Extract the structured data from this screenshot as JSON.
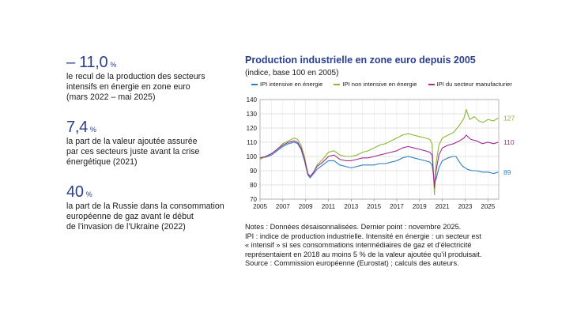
{
  "stats": [
    {
      "value": "– 11,0",
      "unit": "%",
      "text": "le recul de la production des secteurs\nintensifs en énergie en zone euro\n(mars 2022 – mai 2025)"
    },
    {
      "value": "7,4",
      "unit": "%",
      "text": "la part de la valeur ajoutée assurée\npar ces secteurs juste avant la crise\nénergétique (2021)"
    },
    {
      "value": "40",
      "unit": "%",
      "text": "la part de la Russie dans la consommation\neuropéenne de gaz avant le début\nde l’invasion de l’Ukraine (2022)"
    }
  ],
  "notes": [
    "Notes : Données désaisonnalisées. Dernier point : novembre 2025.",
    "IPI : indice de production industrielle. Intensité en énergie : un secteur est",
    "« intensif » si ses consommations intermédiaires de gaz et d’électricité",
    "représentaient en 2018 au moins 5 % de la valeur ajoutée qu’il produisait.",
    "Source : Commission européenne (Eurostat) ; calculs des auteurs."
  ],
  "chart_data": {
    "type": "line",
    "title": "Production industrielle en zone euro depuis 2005",
    "subtitle": "(indice, base 100 en 2005)",
    "xlabel": "",
    "ylabel": "",
    "xlim": [
      2005,
      2025.95
    ],
    "ylim": [
      70,
      140
    ],
    "yticks": [
      70,
      80,
      90,
      100,
      110,
      120,
      130,
      140
    ],
    "xticks": [
      "2005",
      "2007",
      "2009",
      "2011",
      "2013",
      "2015",
      "2017",
      "2019",
      "2021",
      "2023",
      "2025"
    ],
    "grid": true,
    "legend_position": "top",
    "series": [
      {
        "name": "IPI intensive en énergie",
        "color": "#2a7fc1",
        "end_label": "89",
        "points": [
          [
            2005,
            99
          ],
          [
            2005.5,
            99.5
          ],
          [
            2006,
            101
          ],
          [
            2006.5,
            104
          ],
          [
            2007,
            107
          ],
          [
            2007.5,
            109
          ],
          [
            2008,
            110
          ],
          [
            2008.3,
            109
          ],
          [
            2008.6,
            105
          ],
          [
            2008.9,
            97
          ],
          [
            2009.2,
            87
          ],
          [
            2009.4,
            85
          ],
          [
            2009.7,
            88
          ],
          [
            2010,
            91
          ],
          [
            2010.5,
            94
          ],
          [
            2011,
            97
          ],
          [
            2011.5,
            97
          ],
          [
            2012,
            94
          ],
          [
            2012.5,
            93
          ],
          [
            2013,
            92
          ],
          [
            2013.5,
            93
          ],
          [
            2014,
            94
          ],
          [
            2014.5,
            94
          ],
          [
            2015,
            94
          ],
          [
            2015.5,
            95
          ],
          [
            2016,
            95
          ],
          [
            2016.5,
            96
          ],
          [
            2017,
            97
          ],
          [
            2017.5,
            99
          ],
          [
            2018,
            100
          ],
          [
            2018.5,
            99
          ],
          [
            2019,
            98
          ],
          [
            2019.5,
            97
          ],
          [
            2019.9,
            96
          ],
          [
            2020.1,
            94
          ],
          [
            2020.3,
            82
          ],
          [
            2020.45,
            84
          ],
          [
            2020.7,
            92
          ],
          [
            2021,
            97
          ],
          [
            2021.5,
            99
          ],
          [
            2021.9,
            100
          ],
          [
            2022.2,
            100
          ],
          [
            2022.5,
            96
          ],
          [
            2022.8,
            93
          ],
          [
            2023.2,
            91
          ],
          [
            2023.6,
            90
          ],
          [
            2024,
            90
          ],
          [
            2024.5,
            89
          ],
          [
            2025,
            89
          ],
          [
            2025.5,
            88
          ],
          [
            2025.9,
            89
          ]
        ]
      },
      {
        "name": "IPI non intensive en énergie",
        "color": "#8ab832",
        "end_label": "127",
        "points": [
          [
            2005,
            98
          ],
          [
            2005.5,
            100
          ],
          [
            2006,
            102
          ],
          [
            2006.5,
            105
          ],
          [
            2007,
            109
          ],
          [
            2007.5,
            111
          ],
          [
            2008,
            113
          ],
          [
            2008.3,
            112
          ],
          [
            2008.6,
            108
          ],
          [
            2008.9,
            100
          ],
          [
            2009.2,
            88
          ],
          [
            2009.4,
            86
          ],
          [
            2009.7,
            89
          ],
          [
            2010,
            94
          ],
          [
            2010.5,
            98
          ],
          [
            2011,
            103
          ],
          [
            2011.5,
            104
          ],
          [
            2012,
            101
          ],
          [
            2012.5,
            100
          ],
          [
            2013,
            100
          ],
          [
            2013.5,
            101
          ],
          [
            2014,
            103
          ],
          [
            2014.5,
            104
          ],
          [
            2015,
            106
          ],
          [
            2015.5,
            108
          ],
          [
            2016,
            109
          ],
          [
            2016.5,
            111
          ],
          [
            2017,
            113
          ],
          [
            2017.5,
            115
          ],
          [
            2018,
            116
          ],
          [
            2018.5,
            115
          ],
          [
            2019,
            114
          ],
          [
            2019.5,
            113
          ],
          [
            2019.9,
            112
          ],
          [
            2020.1,
            109
          ],
          [
            2020.3,
            73
          ],
          [
            2020.45,
            95
          ],
          [
            2020.7,
            108
          ],
          [
            2021,
            113
          ],
          [
            2021.5,
            115
          ],
          [
            2022,
            117
          ],
          [
            2022.5,
            122
          ],
          [
            2022.9,
            127
          ],
          [
            2023.1,
            133
          ],
          [
            2023.4,
            126
          ],
          [
            2023.8,
            128
          ],
          [
            2024.2,
            125
          ],
          [
            2024.6,
            124
          ],
          [
            2025,
            126
          ],
          [
            2025.5,
            125
          ],
          [
            2025.9,
            127
          ]
        ]
      },
      {
        "name": "IPI du secteur manufacturier",
        "color": "#a12b8f",
        "end_label": "110",
        "points": [
          [
            2005,
            99
          ],
          [
            2005.5,
            100
          ],
          [
            2006,
            102
          ],
          [
            2006.5,
            105
          ],
          [
            2007,
            108
          ],
          [
            2007.5,
            110
          ],
          [
            2008,
            111
          ],
          [
            2008.3,
            110
          ],
          [
            2008.6,
            106
          ],
          [
            2008.9,
            98
          ],
          [
            2009.2,
            88
          ],
          [
            2009.4,
            86
          ],
          [
            2009.7,
            89
          ],
          [
            2010,
            93
          ],
          [
            2010.5,
            96
          ],
          [
            2011,
            100
          ],
          [
            2011.5,
            101
          ],
          [
            2012,
            98
          ],
          [
            2012.5,
            97
          ],
          [
            2013,
            97
          ],
          [
            2013.5,
            98
          ],
          [
            2014,
            99
          ],
          [
            2014.5,
            99
          ],
          [
            2015,
            100
          ],
          [
            2015.5,
            101
          ],
          [
            2016,
            102
          ],
          [
            2016.5,
            103
          ],
          [
            2017,
            104
          ],
          [
            2017.5,
            106
          ],
          [
            2018,
            107
          ],
          [
            2018.5,
            106
          ],
          [
            2019,
            105
          ],
          [
            2019.5,
            104
          ],
          [
            2019.9,
            103
          ],
          [
            2020.1,
            101
          ],
          [
            2020.3,
            78
          ],
          [
            2020.45,
            90
          ],
          [
            2020.7,
            101
          ],
          [
            2021,
            106
          ],
          [
            2021.5,
            108
          ],
          [
            2022,
            109
          ],
          [
            2022.5,
            111
          ],
          [
            2022.9,
            113
          ],
          [
            2023.1,
            115
          ],
          [
            2023.5,
            112
          ],
          [
            2024,
            111
          ],
          [
            2024.5,
            109
          ],
          [
            2025,
            110
          ],
          [
            2025.5,
            109
          ],
          [
            2025.9,
            110
          ]
        ]
      }
    ]
  }
}
